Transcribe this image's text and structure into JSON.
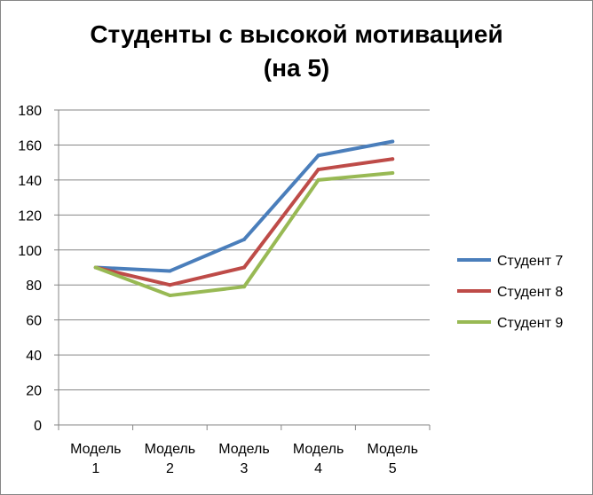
{
  "chart_data": {
    "type": "line",
    "title_lines": [
      "Студенты с высокой мотивацией",
      "(на 5)"
    ],
    "categories": [
      [
        "Модель",
        "1"
      ],
      [
        "Модель",
        "2"
      ],
      [
        "Модель",
        "3"
      ],
      [
        "Модель",
        "4"
      ],
      [
        "Модель",
        "5"
      ]
    ],
    "ylim": [
      0,
      180
    ],
    "yticks": [
      "0",
      "20",
      "40",
      "60",
      "80",
      "100",
      "120",
      "140",
      "160",
      "180"
    ],
    "grid": true,
    "legend_position": "right",
    "series": [
      {
        "name": "Студент 7",
        "color": "#4a7ebb",
        "values": [
          90,
          88,
          106,
          154,
          162
        ]
      },
      {
        "name": "Студент 8",
        "color": "#be4b48",
        "values": [
          90,
          80,
          90,
          146,
          152
        ]
      },
      {
        "name": "Студент 9",
        "color": "#98b954",
        "values": [
          90,
          74,
          79,
          140,
          144
        ]
      }
    ]
  }
}
